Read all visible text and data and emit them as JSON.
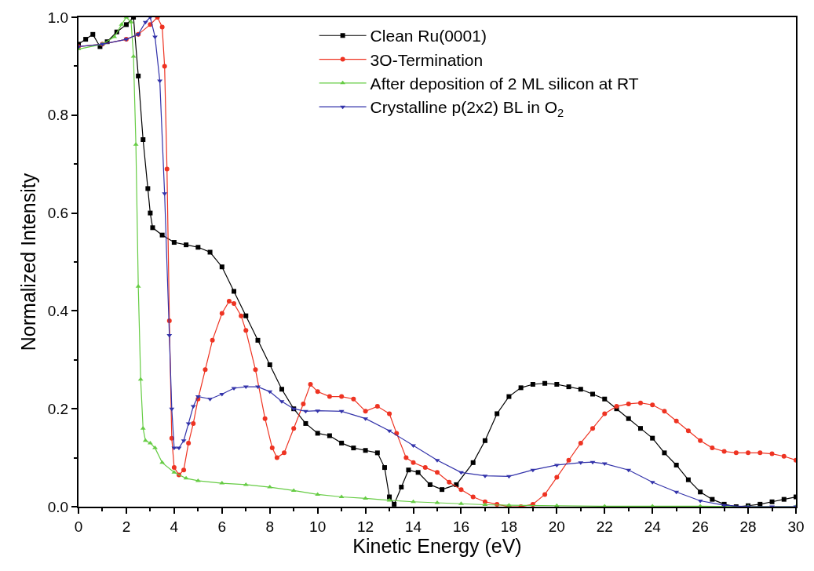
{
  "chart_data": {
    "type": "line",
    "xlabel": "Kinetic Energy (eV)",
    "ylabel": "Normalized Intensity",
    "xlim": [
      0,
      30
    ],
    "ylim": [
      0,
      1.0
    ],
    "xticks": [
      0,
      2,
      4,
      6,
      8,
      10,
      12,
      14,
      16,
      18,
      20,
      22,
      24,
      26,
      28,
      30
    ],
    "yticks": [
      {
        "value": 0,
        "label": "0.0"
      },
      0.2,
      0.4,
      0.6,
      0.8,
      {
        "value": 1,
        "label": "1.0"
      }
    ],
    "legend": "top right",
    "line_style": "solid",
    "series": [
      {
        "name": "Clean Ru(0001)",
        "color": "#000000",
        "marker": "square",
        "x": [
          0,
          0.3,
          0.6,
          0.9,
          1.2,
          1.6,
          2.0,
          2.3,
          2.5,
          2.7,
          2.9,
          3.0,
          3.1,
          3.5,
          4,
          4.5,
          5,
          5.5,
          6,
          6.5,
          7,
          7.5,
          8,
          8.5,
          9,
          9.5,
          10,
          10.5,
          11,
          11.5,
          12,
          12.5,
          12.8,
          13,
          13.2,
          13.5,
          13.8,
          14.2,
          14.7,
          15.2,
          15.8,
          16.5,
          17,
          17.5,
          18,
          18.5,
          19,
          19.5,
          20,
          20.5,
          21,
          21.5,
          22,
          22.5,
          23,
          23.5,
          24,
          24.5,
          25,
          25.5,
          26,
          26.5,
          27,
          27.5,
          28,
          28.5,
          29,
          29.5,
          30
        ],
        "values": [
          0.945,
          0.955,
          0.965,
          0.94,
          0.95,
          0.97,
          0.985,
          1.0,
          0.88,
          0.75,
          0.65,
          0.6,
          0.57,
          0.555,
          0.54,
          0.535,
          0.53,
          0.52,
          0.49,
          0.44,
          0.39,
          0.34,
          0.29,
          0.24,
          0.2,
          0.17,
          0.15,
          0.145,
          0.13,
          0.12,
          0.115,
          0.11,
          0.08,
          0.02,
          0.005,
          0.04,
          0.075,
          0.07,
          0.045,
          0.035,
          0.045,
          0.09,
          0.135,
          0.19,
          0.225,
          0.243,
          0.25,
          0.252,
          0.25,
          0.245,
          0.24,
          0.23,
          0.22,
          0.2,
          0.18,
          0.16,
          0.14,
          0.11,
          0.085,
          0.055,
          0.03,
          0.015,
          0.005,
          0.0,
          0.002,
          0.005,
          0.01,
          0.015,
          0.02
        ]
      },
      {
        "name": "3O-Termination",
        "color": "#ee3322",
        "marker": "circle",
        "x": [
          0,
          1,
          2,
          2.5,
          3,
          3.3,
          3.5,
          3.6,
          3.7,
          3.8,
          3.9,
          4.0,
          4.2,
          4.4,
          4.6,
          4.8,
          5,
          5.3,
          5.6,
          6,
          6.3,
          6.5,
          6.8,
          7,
          7.4,
          7.8,
          8.1,
          8.3,
          8.6,
          9,
          9.4,
          9.7,
          10,
          10.5,
          11,
          11.5,
          12,
          12.5,
          13,
          13.3,
          13.7,
          14,
          14.5,
          15,
          15.5,
          16,
          16.5,
          17,
          17.5,
          18,
          18.5,
          19,
          19.5,
          20,
          20.5,
          21,
          21.5,
          22,
          22.5,
          23,
          23.5,
          24,
          24.5,
          25,
          25.5,
          26,
          26.5,
          27,
          27.5,
          28,
          28.5,
          29,
          29.5,
          30
        ],
        "values": [
          0.94,
          0.945,
          0.955,
          0.965,
          0.985,
          1.0,
          0.98,
          0.9,
          0.69,
          0.38,
          0.14,
          0.08,
          0.065,
          0.075,
          0.13,
          0.17,
          0.22,
          0.28,
          0.34,
          0.395,
          0.42,
          0.415,
          0.39,
          0.36,
          0.28,
          0.18,
          0.12,
          0.1,
          0.11,
          0.16,
          0.21,
          0.25,
          0.235,
          0.225,
          0.225,
          0.22,
          0.195,
          0.205,
          0.19,
          0.15,
          0.1,
          0.09,
          0.08,
          0.07,
          0.05,
          0.035,
          0.02,
          0.01,
          0.005,
          0.0,
          0.0,
          0.005,
          0.025,
          0.06,
          0.095,
          0.13,
          0.16,
          0.19,
          0.205,
          0.21,
          0.212,
          0.208,
          0.195,
          0.175,
          0.155,
          0.135,
          0.12,
          0.113,
          0.11,
          0.11,
          0.11,
          0.108,
          0.103,
          0.095
        ]
      },
      {
        "name": "After deposition of 2 ML silicon at RT",
        "color": "#66cc44",
        "marker": "triangle",
        "x": [
          0,
          1,
          1.5,
          1.8,
          2.0,
          2.2,
          2.3,
          2.4,
          2.5,
          2.6,
          2.7,
          2.8,
          3.0,
          3.2,
          3.5,
          4,
          4.5,
          5,
          6,
          7,
          8,
          9,
          10,
          11,
          12,
          13,
          14,
          15,
          16,
          17,
          18,
          20,
          22,
          24,
          26,
          28,
          30
        ],
        "values": [
          0.935,
          0.945,
          0.96,
          0.985,
          1.0,
          0.99,
          0.92,
          0.74,
          0.45,
          0.26,
          0.16,
          0.135,
          0.13,
          0.12,
          0.09,
          0.07,
          0.058,
          0.053,
          0.048,
          0.045,
          0.04,
          0.033,
          0.025,
          0.02,
          0.017,
          0.013,
          0.01,
          0.008,
          0.006,
          0.004,
          0.003,
          0.002,
          0.001,
          0.001,
          0.001,
          0.0,
          0.0
        ]
      },
      {
        "name": "Crystalline p(2x2) BL in O$_{2}$",
        "color": "#3333aa",
        "marker": "triangle-down",
        "x": [
          0,
          1,
          2,
          2.5,
          2.8,
          3.0,
          3.2,
          3.4,
          3.6,
          3.8,
          3.9,
          4.0,
          4.2,
          4.4,
          4.6,
          4.8,
          5,
          5.5,
          6,
          6.5,
          7,
          7.5,
          8,
          8.5,
          9,
          9.5,
          10,
          11,
          12,
          13,
          14,
          15,
          16,
          17,
          18,
          19,
          20,
          21,
          21.5,
          22,
          23,
          24,
          25,
          26,
          27,
          28,
          29,
          30
        ],
        "values": [
          0.94,
          0.945,
          0.955,
          0.965,
          0.99,
          1.0,
          0.96,
          0.87,
          0.64,
          0.35,
          0.2,
          0.12,
          0.12,
          0.135,
          0.17,
          0.205,
          0.225,
          0.22,
          0.23,
          0.242,
          0.245,
          0.245,
          0.235,
          0.215,
          0.2,
          0.195,
          0.196,
          0.195,
          0.18,
          0.155,
          0.125,
          0.095,
          0.07,
          0.063,
          0.062,
          0.075,
          0.085,
          0.09,
          0.091,
          0.088,
          0.075,
          0.05,
          0.03,
          0.012,
          0.003,
          0.0,
          0.0,
          0.0
        ]
      }
    ]
  }
}
